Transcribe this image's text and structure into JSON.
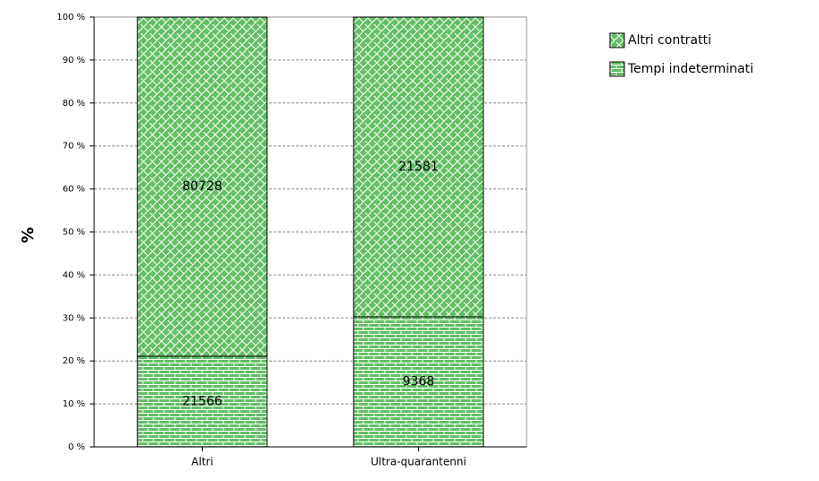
{
  "chart_data": {
    "type": "bar",
    "stacked": "percent",
    "y_label": "%",
    "categories": [
      "Altri",
      "Ultra-quarantenni"
    ],
    "series": [
      {
        "name": "Tempi indeterminati",
        "color": "#63bf63",
        "hatch": "brick",
        "values": [
          21566,
          9368
        ]
      },
      {
        "name": "Altri contratti",
        "color": "#63bf63",
        "hatch": "weave",
        "values": [
          80728,
          21581
        ]
      }
    ],
    "ylim": [
      0,
      100
    ],
    "yticks": [
      {
        "value": 0,
        "label": "0 %"
      },
      {
        "value": 10,
        "label": "10 %"
      },
      {
        "value": 20,
        "label": "20 %"
      },
      {
        "value": 30,
        "label": "30 %"
      },
      {
        "value": 40,
        "label": "40 %"
      },
      {
        "value": 50,
        "label": "50 %"
      },
      {
        "value": 60,
        "label": "60 %"
      },
      {
        "value": 70,
        "label": "70 %"
      },
      {
        "value": 80,
        "label": "80 %"
      },
      {
        "value": 90,
        "label": "90 %"
      },
      {
        "value": 100,
        "label": "100 %"
      }
    ],
    "grid": true,
    "legend": "top-right"
  }
}
